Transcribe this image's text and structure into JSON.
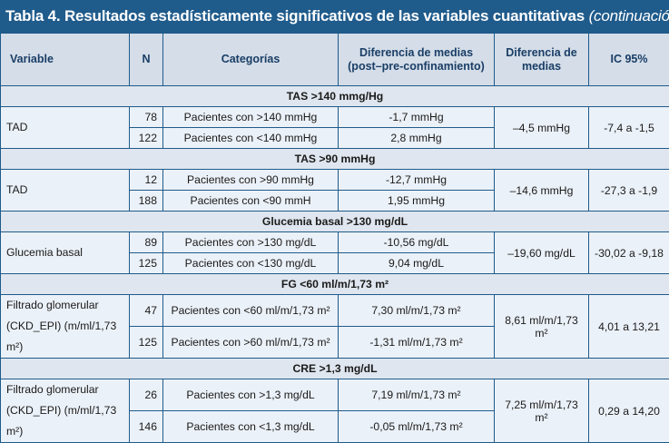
{
  "title": {
    "main": "Tabla 4. Resultados estadísticamente significativos de las variables cuantitativas",
    "sub": "(continuación)"
  },
  "columns": {
    "variable": "Variable",
    "n": "N",
    "categorias": "Categorías",
    "dif_line1": "Diferencia de medias",
    "dif_line2": "(post–pre-confinamiento)",
    "dm_line1": "Diferencia de",
    "dm_line2": "medias",
    "ic": "IC 95%"
  },
  "sections": [
    {
      "header": "TAS >140 mmg/Hg",
      "variable_lines": [
        "TAD"
      ],
      "rows": [
        {
          "n": "78",
          "categoria": "Pacientes con >140 mmHg",
          "diferencia": "-1,7 mmHg"
        },
        {
          "n": "122",
          "categoria": "Pacientes con <140 mmHg",
          "diferencia": "2,8 mmHg"
        }
      ],
      "diferencia_medias": "–4,5 mmHg",
      "ic": "-7,4 a -1,5"
    },
    {
      "header": "TAS >90 mmHg",
      "variable_lines": [
        "TAD"
      ],
      "rows": [
        {
          "n": "12",
          "categoria": "Pacientes con >90 mmHg",
          "diferencia": "-12,7 mmHg"
        },
        {
          "n": "188",
          "categoria": "Pacientes con <90 mmH",
          "diferencia": "1,95 mmHg"
        }
      ],
      "diferencia_medias": "–14,6 mmHg",
      "ic": "-27,3 a -1,9"
    },
    {
      "header": "Glucemia basal >130 mg/dL",
      "variable_lines": [
        "Glucemia basal"
      ],
      "rows": [
        {
          "n": "89",
          "categoria": "Pacientes con >130 mg/dL",
          "diferencia": "-10,56 mg/dL"
        },
        {
          "n": "125",
          "categoria": "Pacientes con <130 mg/dL",
          "diferencia": "9,04 mg/dL"
        }
      ],
      "diferencia_medias": "–19,60 mg/dL",
      "ic": "-30,02 a -9,18"
    },
    {
      "header": "FG <60 ml/m/1,73 m²",
      "variable_lines": [
        "Filtrado glomerular",
        "(CKD_EPI) (m/ml/1,73 m²)"
      ],
      "rows": [
        {
          "n": "47",
          "categoria": "Pacientes con <60 ml/m/1,73 m²",
          "diferencia": "7,30 ml/m/1,73 m²"
        },
        {
          "n": "125",
          "categoria": "Pacientes con >60 ml/m/1,73 m²",
          "diferencia": "-1,31 ml/m/1,73 m²"
        }
      ],
      "diferencia_medias": "8,61 ml/m/1,73 m²",
      "ic": "4,01 a 13,21"
    },
    {
      "header": "CRE >1,3 mg/dL",
      "variable_lines": [
        "Filtrado glomerular",
        "(CKD_EPI) (m/ml/1,73 m²)"
      ],
      "rows": [
        {
          "n": "26",
          "categoria": "Pacientes con >1,3 mg/dL",
          "diferencia": "7,19 ml/m/1,73 m²"
        },
        {
          "n": "146",
          "categoria": "Pacientes con <1,3 mg/dL",
          "diferencia": "-0,05 ml/m/1,73 m²"
        }
      ],
      "diferencia_medias": "7,25 ml/m/1,73 m²",
      "ic": "0,29 a 14,20"
    }
  ]
}
